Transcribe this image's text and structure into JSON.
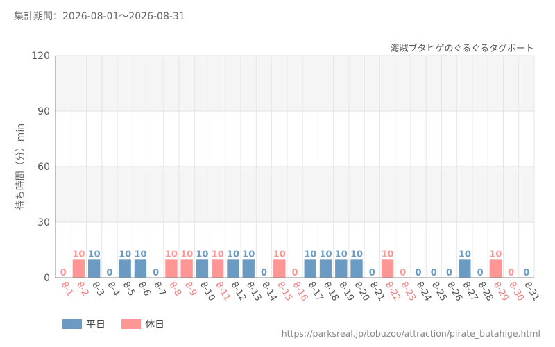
{
  "period_label": "集計期間：2026-08-01～2026-08-31",
  "source_url": "https://parksreal.jp/tobuzoo/attraction/pirate_butahige.html",
  "chart_data": {
    "type": "bar",
    "title": "海賊ブタヒゲのぐるぐるタグボート",
    "ylabel": "待ち時間（分）min",
    "ylim": [
      0,
      120
    ],
    "yticks": [
      "0",
      "30",
      "60",
      "90",
      "120"
    ],
    "grid": true,
    "legend_position": "bottom-left",
    "legend": [
      {
        "name": "平日",
        "color": "#6b9bc3"
      },
      {
        "name": "休日",
        "color": "#ff9696"
      }
    ],
    "label_colors": {
      "weekday": "#555555",
      "holiday": "#f08080"
    },
    "categories": [
      "8-1",
      "8-2",
      "8-3",
      "8-4",
      "8-5",
      "8-6",
      "8-7",
      "8-8",
      "8-9",
      "8-10",
      "8-11",
      "8-12",
      "8-13",
      "8-14",
      "8-15",
      "8-16",
      "8-17",
      "8-18",
      "8-19",
      "8-20",
      "8-21",
      "8-22",
      "8-23",
      "8-24",
      "8-25",
      "8-26",
      "8-27",
      "8-28",
      "8-29",
      "8-30",
      "8-31"
    ],
    "values": [
      0,
      10,
      10,
      0,
      10,
      10,
      0,
      10,
      10,
      10,
      10,
      10,
      10,
      0,
      10,
      0,
      10,
      10,
      10,
      10,
      0,
      10,
      0,
      0,
      0,
      0,
      10,
      0,
      10,
      0,
      0
    ],
    "holiday": [
      true,
      true,
      false,
      false,
      false,
      false,
      false,
      true,
      true,
      false,
      true,
      false,
      false,
      false,
      true,
      true,
      false,
      false,
      false,
      false,
      false,
      true,
      true,
      false,
      false,
      false,
      false,
      false,
      true,
      true,
      false
    ]
  }
}
